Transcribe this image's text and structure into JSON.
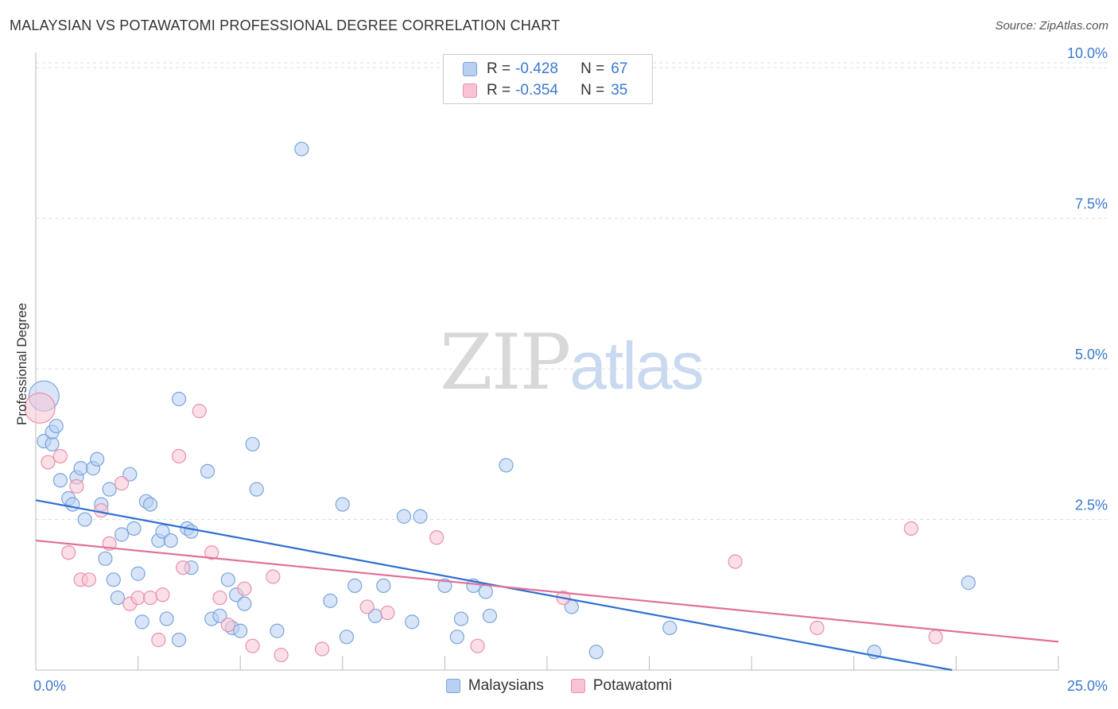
{
  "header": {
    "title": "MALAYSIAN VS POTAWATOMI PROFESSIONAL DEGREE CORRELATION CHART",
    "source": "Source: ZipAtlas.com"
  },
  "watermark": {
    "zip": "ZIP",
    "atlas": "atlas"
  },
  "legend_top": {
    "rows": [
      {
        "r_label": "R =",
        "r_value": "-0.428",
        "n_label": "N =",
        "n_value": "67"
      },
      {
        "r_label": "R =",
        "r_value": "-0.354",
        "n_label": "N =",
        "n_value": "35"
      }
    ]
  },
  "legend_bottom": {
    "items": [
      {
        "label": "Malaysians"
      },
      {
        "label": "Potawatomi"
      }
    ]
  },
  "colors": {
    "blue_fill": "#b8d0f2",
    "blue_stroke": "#7aa4dc",
    "blue_line": "#2f6fd0",
    "pink_fill": "#f8c4d4",
    "pink_stroke": "#ea8fae",
    "pink_line": "#e0709a",
    "tick_label": "#3a78d0",
    "grid": "#dddddd"
  },
  "chart_data": {
    "type": "scatter",
    "title": "MALAYSIAN VS POTAWATOMI PROFESSIONAL DEGREE CORRELATION CHART",
    "xlabel": "",
    "ylabel": "Professional Degree",
    "xlim": [
      0,
      25
    ],
    "ylim": [
      0,
      10.2
    ],
    "x_tick_labels": [
      {
        "value": 0,
        "label": "0.0%"
      },
      {
        "value": 25,
        "label": "25.0%"
      }
    ],
    "y_tick_labels": [
      {
        "value": 2.5,
        "label": "2.5%"
      },
      {
        "value": 5.0,
        "label": "5.0%"
      },
      {
        "value": 7.5,
        "label": "7.5%"
      },
      {
        "value": 10.0,
        "label": "10.0%"
      }
    ],
    "series": [
      {
        "name": "Malaysians",
        "color": "blue",
        "R": -0.428,
        "N": 67,
        "trend": {
          "x0": 0,
          "y0": 2.82,
          "x1": 22.4,
          "y1": 0
        },
        "points": [
          [
            0.2,
            4.55,
            "big"
          ],
          [
            0.2,
            3.8
          ],
          [
            0.4,
            3.75
          ],
          [
            0.4,
            3.95
          ],
          [
            0.5,
            4.05
          ],
          [
            0.6,
            3.15
          ],
          [
            0.8,
            2.85
          ],
          [
            0.9,
            2.75
          ],
          [
            1.0,
            3.2
          ],
          [
            1.1,
            3.35
          ],
          [
            1.2,
            2.5
          ],
          [
            1.4,
            3.35
          ],
          [
            1.5,
            3.5
          ],
          [
            1.6,
            2.75
          ],
          [
            1.7,
            1.85
          ],
          [
            1.8,
            3.0
          ],
          [
            1.9,
            1.5
          ],
          [
            2.0,
            1.2
          ],
          [
            2.1,
            2.25
          ],
          [
            2.3,
            3.25
          ],
          [
            2.4,
            2.35
          ],
          [
            2.5,
            1.6
          ],
          [
            2.6,
            0.8
          ],
          [
            2.7,
            2.8
          ],
          [
            2.8,
            2.75
          ],
          [
            3.0,
            2.15
          ],
          [
            3.1,
            2.3
          ],
          [
            3.2,
            0.85
          ],
          [
            3.3,
            2.15
          ],
          [
            3.5,
            4.5
          ],
          [
            3.5,
            0.5
          ],
          [
            3.7,
            2.35
          ],
          [
            3.8,
            2.3
          ],
          [
            3.8,
            1.7
          ],
          [
            4.2,
            3.3
          ],
          [
            4.3,
            0.85
          ],
          [
            4.5,
            0.9
          ],
          [
            4.7,
            1.5
          ],
          [
            4.8,
            0.7
          ],
          [
            4.9,
            1.25
          ],
          [
            5.0,
            0.65
          ],
          [
            5.1,
            1.1
          ],
          [
            5.3,
            3.75
          ],
          [
            5.4,
            3.0
          ],
          [
            5.9,
            0.65
          ],
          [
            6.5,
            8.65
          ],
          [
            7.2,
            1.15
          ],
          [
            7.5,
            2.75
          ],
          [
            7.6,
            0.55
          ],
          [
            7.8,
            1.4
          ],
          [
            8.3,
            0.9
          ],
          [
            8.5,
            1.4
          ],
          [
            9.0,
            2.55
          ],
          [
            9.2,
            0.8
          ],
          [
            9.4,
            2.55
          ],
          [
            10.0,
            1.4
          ],
          [
            10.3,
            0.55
          ],
          [
            10.4,
            0.85
          ],
          [
            10.7,
            1.4
          ],
          [
            11.0,
            1.3
          ],
          [
            11.1,
            0.9
          ],
          [
            11.5,
            3.4
          ],
          [
            13.1,
            1.05
          ],
          [
            13.7,
            0.3
          ],
          [
            15.5,
            0.7
          ],
          [
            20.5,
            0.3
          ],
          [
            22.8,
            1.45
          ]
        ]
      },
      {
        "name": "Potawatomi",
        "color": "pink",
        "R": -0.354,
        "N": 35,
        "trend": {
          "x0": 0,
          "y0": 2.15,
          "x1": 25,
          "y1": 0.47
        },
        "points": [
          [
            0.1,
            4.35,
            "big"
          ],
          [
            0.3,
            3.45
          ],
          [
            0.6,
            3.55
          ],
          [
            0.8,
            1.95
          ],
          [
            1.0,
            3.05
          ],
          [
            1.1,
            1.5
          ],
          [
            1.3,
            1.5
          ],
          [
            1.6,
            2.65
          ],
          [
            1.8,
            2.1
          ],
          [
            2.1,
            3.1
          ],
          [
            2.3,
            1.1
          ],
          [
            2.5,
            1.2
          ],
          [
            2.8,
            1.2
          ],
          [
            3.0,
            0.5
          ],
          [
            3.1,
            1.25
          ],
          [
            3.5,
            3.55
          ],
          [
            3.6,
            1.7
          ],
          [
            4.0,
            4.3
          ],
          [
            4.3,
            1.95
          ],
          [
            4.5,
            1.2
          ],
          [
            4.7,
            0.75
          ],
          [
            5.1,
            1.35
          ],
          [
            5.3,
            0.4
          ],
          [
            5.8,
            1.55
          ],
          [
            6.0,
            0.25
          ],
          [
            7.0,
            0.35
          ],
          [
            8.1,
            1.05
          ],
          [
            8.6,
            0.95
          ],
          [
            9.8,
            2.2
          ],
          [
            10.8,
            0.4
          ],
          [
            12.9,
            1.2
          ],
          [
            17.1,
            1.8
          ],
          [
            19.1,
            0.7
          ],
          [
            21.4,
            2.35
          ],
          [
            22.0,
            0.55
          ]
        ]
      }
    ]
  }
}
